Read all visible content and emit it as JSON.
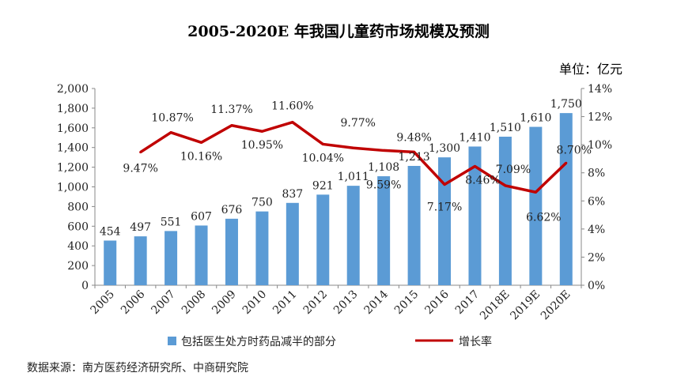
{
  "chart_data": {
    "type": "bar+line",
    "title": "2005-2020E 年我国儿童药市场规模及预测",
    "unit_label": "单位：亿元",
    "categories": [
      "2005",
      "2006",
      "2007",
      "2008",
      "2009",
      "2010",
      "2011",
      "2012",
      "2013",
      "2014",
      "2015",
      "2016",
      "2017",
      "2018E",
      "2019E",
      "2020E"
    ],
    "bar_series": {
      "name": "包括医生处方时药品减半的部分",
      "values": [
        454,
        497,
        551,
        607,
        676,
        750,
        837,
        921,
        1011,
        1108,
        1213,
        1300,
        1410,
        1510,
        1610,
        1750
      ],
      "value_labels": [
        "454",
        "497",
        "551",
        "607",
        "676",
        "750",
        "837",
        "921",
        "1,011",
        "1,108",
        "1,213",
        "1,300",
        "1,410",
        "1,510",
        "1,610",
        "1,750"
      ],
      "color": "#5b9bd5"
    },
    "line_series": {
      "name": "增长率",
      "x": [
        "2006",
        "2007",
        "2008",
        "2009",
        "2010",
        "2011",
        "2012",
        "2013",
        "2014",
        "2015",
        "2016",
        "2017",
        "2018E",
        "2019E",
        "2020E"
      ],
      "values": [
        9.47,
        10.87,
        10.16,
        11.37,
        10.95,
        11.6,
        10.04,
        9.77,
        9.59,
        9.48,
        7.17,
        8.46,
        7.09,
        6.62,
        8.7
      ],
      "value_labels": [
        "9.47%",
        "10.87%",
        "10.16%",
        "11.37%",
        "10.95%",
        "11.60%",
        "10.04%",
        "9.77%",
        "9.59%",
        "9.48%",
        "7.17%",
        "8.46%",
        "7.09%",
        "6.62%",
        "8.70%"
      ],
      "color": "#c00000"
    },
    "left_axis": {
      "range": [
        0,
        2000
      ],
      "ticks": [
        0,
        200,
        400,
        600,
        800,
        1000,
        1200,
        1400,
        1600,
        1800,
        2000
      ],
      "tick_labels": [
        "0",
        "200",
        "400",
        "600",
        "800",
        "1,000",
        "1,200",
        "1,400",
        "1,600",
        "1,800",
        "2,000"
      ]
    },
    "right_axis": {
      "range": [
        0,
        14
      ],
      "ticks": [
        0,
        2,
        4,
        6,
        8,
        10,
        12,
        14
      ],
      "tick_labels": [
        "0%",
        "2%",
        "4%",
        "6%",
        "8%",
        "10%",
        "12%",
        "14%"
      ]
    },
    "grid": false,
    "legend_position": "bottom"
  },
  "source_text": "数据来源：南方医药经济研究所、中商研究院"
}
